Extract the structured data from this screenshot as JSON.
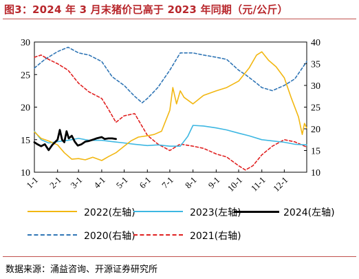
{
  "title": "图3：2024 年 3 月末猪价已高于 2023 年同期（元/公斤）",
  "source": "数据来源：涌益咨询、开源证券研究所",
  "chart_data": {
    "type": "line",
    "x_ticks": [
      "1-1",
      "2-1",
      "3-1",
      "4-1",
      "5-1",
      "6-1",
      "7-1",
      "8-1",
      "9-1",
      "10-1",
      "11-1",
      "12-1"
    ],
    "xlim": [
      "1-1",
      "12-31"
    ],
    "y_left": {
      "lim": [
        10,
        30
      ],
      "ticks": [
        10,
        15,
        20,
        25,
        30
      ]
    },
    "y_right": {
      "lim": [
        10,
        40
      ],
      "ticks": [
        10,
        15,
        20,
        25,
        30,
        35,
        40
      ]
    },
    "grid": false,
    "legend_placement": "bottom",
    "series": [
      {
        "name": "2022(左轴)",
        "axis": "left",
        "color": "#f2b711",
        "style": "solid",
        "points": [
          [
            "1-1",
            16.2
          ],
          [
            "1-10",
            15.2
          ],
          [
            "1-20",
            14.8
          ],
          [
            "2-1",
            14.2
          ],
          [
            "2-10",
            13.0
          ],
          [
            "2-20",
            12.0
          ],
          [
            "3-1",
            12.1
          ],
          [
            "3-10",
            11.9
          ],
          [
            "3-20",
            12.3
          ],
          [
            "4-1",
            11.8
          ],
          [
            "4-10",
            12.4
          ],
          [
            "4-20",
            13.0
          ],
          [
            "5-1",
            14.0
          ],
          [
            "5-10",
            14.8
          ],
          [
            "5-20",
            15.4
          ],
          [
            "6-1",
            15.6
          ],
          [
            "6-10",
            15.8
          ],
          [
            "6-20",
            16.3
          ],
          [
            "7-1",
            19.5
          ],
          [
            "7-5",
            23.0
          ],
          [
            "7-10",
            20.5
          ],
          [
            "7-15",
            22.5
          ],
          [
            "7-20",
            21.5
          ],
          [
            "8-1",
            20.5
          ],
          [
            "8-15",
            21.8
          ],
          [
            "9-1",
            22.5
          ],
          [
            "9-15",
            23.0
          ],
          [
            "10-1",
            24.0
          ],
          [
            "10-15",
            26.0
          ],
          [
            "10-25",
            28.0
          ],
          [
            "11-1",
            28.5
          ],
          [
            "11-10",
            27.2
          ],
          [
            "11-20",
            26.2
          ],
          [
            "12-1",
            24.5
          ],
          [
            "12-10",
            21.5
          ],
          [
            "12-20",
            18.5
          ],
          [
            "12-25",
            15.8
          ],
          [
            "12-28",
            17.5
          ],
          [
            "12-31",
            16.8
          ]
        ]
      },
      {
        "name": "2023(左轴)",
        "axis": "left",
        "color": "#3db7e2",
        "style": "solid",
        "points": [
          [
            "1-1",
            16.3
          ],
          [
            "1-10",
            15.0
          ],
          [
            "1-20",
            14.5
          ],
          [
            "2-1",
            14.7
          ],
          [
            "2-15",
            14.9
          ],
          [
            "3-1",
            15.2
          ],
          [
            "3-15",
            14.9
          ],
          [
            "4-1",
            14.9
          ],
          [
            "4-15",
            14.7
          ],
          [
            "5-1",
            14.5
          ],
          [
            "5-15",
            14.3
          ],
          [
            "6-1",
            14.1
          ],
          [
            "6-15",
            14.2
          ],
          [
            "7-1",
            14.0
          ],
          [
            "7-15",
            14.0
          ],
          [
            "7-25",
            15.5
          ],
          [
            "8-1",
            17.2
          ],
          [
            "8-15",
            17.1
          ],
          [
            "9-1",
            16.8
          ],
          [
            "9-15",
            16.5
          ],
          [
            "10-1",
            16.0
          ],
          [
            "10-15",
            15.6
          ],
          [
            "11-1",
            15.0
          ],
          [
            "11-15",
            14.8
          ],
          [
            "12-1",
            14.6
          ],
          [
            "12-15",
            14.3
          ],
          [
            "12-31",
            14.2
          ]
        ]
      },
      {
        "name": "2024(左轴)",
        "axis": "left",
        "color": "#000000",
        "style": "solid",
        "points": [
          [
            "1-1",
            14.6
          ],
          [
            "1-5",
            14.3
          ],
          [
            "1-10",
            14.0
          ],
          [
            "1-15",
            14.3
          ],
          [
            "1-20",
            13.4
          ],
          [
            "1-25",
            14.2
          ],
          [
            "2-1",
            15.0
          ],
          [
            "2-4",
            16.5
          ],
          [
            "2-7",
            15.0
          ],
          [
            "2-10",
            14.6
          ],
          [
            "2-13",
            16.3
          ],
          [
            "2-16",
            15.2
          ],
          [
            "2-20",
            15.6
          ],
          [
            "2-24",
            14.7
          ],
          [
            "2-28",
            14.1
          ],
          [
            "3-5",
            14.3
          ],
          [
            "3-10",
            14.7
          ],
          [
            "3-15",
            14.8
          ],
          [
            "3-20",
            15.0
          ],
          [
            "3-25",
            15.2
          ],
          [
            "4-1",
            15.4
          ],
          [
            "4-5",
            15.1
          ],
          [
            "4-10",
            15.2
          ],
          [
            "4-15",
            15.2
          ],
          [
            "4-20",
            15.1
          ]
        ]
      },
      {
        "name": "2020(右轴)",
        "axis": "right",
        "color": "#2f75b5",
        "style": "dashed",
        "points": [
          [
            "1-1",
            34.0
          ],
          [
            "1-15",
            36.0
          ],
          [
            "2-1",
            37.8
          ],
          [
            "2-15",
            38.8
          ],
          [
            "3-1",
            37.5
          ],
          [
            "3-15",
            37.0
          ],
          [
            "4-1",
            35.5
          ],
          [
            "4-15",
            32.0
          ],
          [
            "5-1",
            30.0
          ],
          [
            "5-15",
            27.5
          ],
          [
            "5-25",
            26.0
          ],
          [
            "6-1",
            27.0
          ],
          [
            "6-15",
            29.5
          ],
          [
            "7-1",
            33.5
          ],
          [
            "7-15",
            37.5
          ],
          [
            "8-1",
            37.5
          ],
          [
            "8-15",
            37.0
          ],
          [
            "9-1",
            36.5
          ],
          [
            "9-15",
            36.0
          ],
          [
            "10-1",
            33.5
          ],
          [
            "10-10",
            32.5
          ],
          [
            "10-25",
            30.5
          ],
          [
            "11-1",
            29.5
          ],
          [
            "11-15",
            28.8
          ],
          [
            "12-1",
            30.0
          ],
          [
            "12-15",
            31.5
          ],
          [
            "12-31",
            35.5
          ]
        ]
      },
      {
        "name": "2021(右轴)",
        "axis": "right",
        "color": "#e02020",
        "style": "dashed",
        "points": [
          [
            "1-1",
            36.5
          ],
          [
            "1-10",
            37.0
          ],
          [
            "1-20",
            36.0
          ],
          [
            "2-1",
            35.0
          ],
          [
            "2-15",
            33.5
          ],
          [
            "3-1",
            30.5
          ],
          [
            "3-15",
            28.5
          ],
          [
            "4-1",
            27.0
          ],
          [
            "4-10",
            24.5
          ],
          [
            "4-20",
            21.5
          ],
          [
            "5-1",
            23.0
          ],
          [
            "5-15",
            23.5
          ],
          [
            "6-1",
            18.5
          ],
          [
            "6-15",
            16.5
          ],
          [
            "7-1",
            15.0
          ],
          [
            "7-15",
            16.5
          ],
          [
            "8-1",
            16.0
          ],
          [
            "8-15",
            15.5
          ],
          [
            "9-1",
            14.2
          ],
          [
            "9-15",
            13.5
          ],
          [
            "10-1",
            11.5
          ],
          [
            "10-10",
            10.5
          ],
          [
            "10-20",
            11.5
          ],
          [
            "11-1",
            14.0
          ],
          [
            "11-15",
            16.0
          ],
          [
            "12-1",
            17.5
          ],
          [
            "12-15",
            17.0
          ],
          [
            "12-31",
            15.8
          ]
        ]
      }
    ]
  }
}
